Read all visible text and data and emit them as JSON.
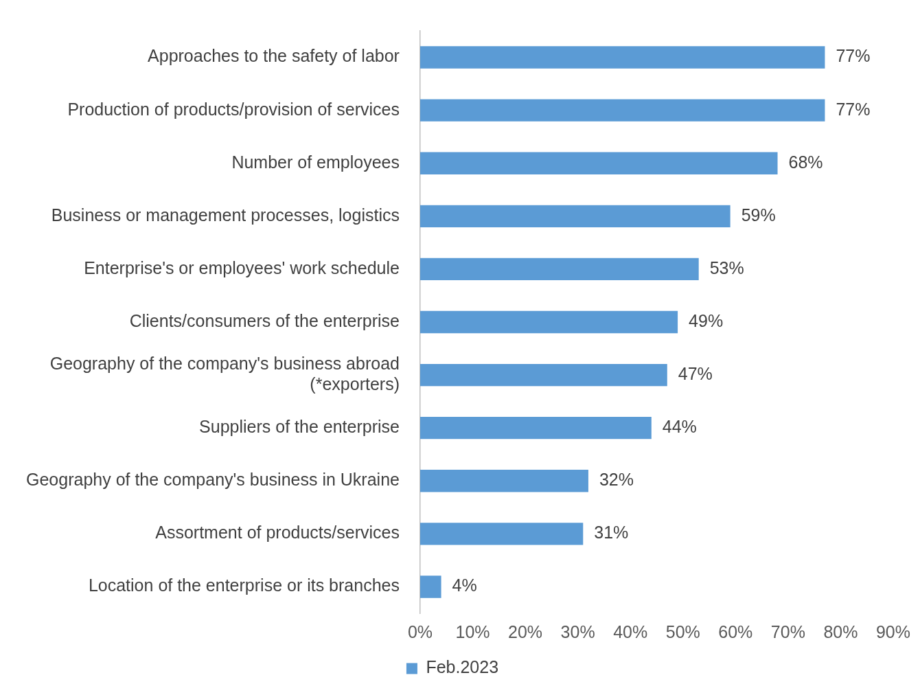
{
  "chart_data": {
    "type": "bar",
    "orientation": "horizontal",
    "categories": [
      "Approaches to the safety of labor",
      "Production of products/provision of services",
      "Number of employees",
      "Business or management processes, logistics",
      "Enterprise's or employees' work schedule",
      "Clients/consumers of the enterprise",
      "Geography of the company's business abroad (*exporters)",
      "Suppliers of the enterprise",
      "Geography of the company's business in Ukraine",
      "Assortment of products/services",
      "Location of the enterprise or its branches"
    ],
    "series": [
      {
        "name": "Feb.2023",
        "color": "#5b9bd5",
        "values": [
          77,
          77,
          68,
          59,
          53,
          49,
          47,
          44,
          32,
          31,
          4
        ],
        "value_labels": [
          "77%",
          "77%",
          "68%",
          "59%",
          "53%",
          "49%",
          "47%",
          "44%",
          "32%",
          "31%",
          "4%"
        ]
      }
    ],
    "xlim": [
      0,
      90
    ],
    "xticks": [
      {
        "value": 0,
        "label": "0%"
      },
      {
        "value": 10,
        "label": "10%"
      },
      {
        "value": 20,
        "label": "20%"
      },
      {
        "value": 30,
        "label": "30%"
      },
      {
        "value": 40,
        "label": "40%"
      },
      {
        "value": 50,
        "label": "50%"
      },
      {
        "value": 60,
        "label": "60%"
      },
      {
        "value": 70,
        "label": "70%"
      },
      {
        "value": 80,
        "label": "80%"
      },
      {
        "value": 90,
        "label": "90%"
      }
    ],
    "legend": "bottom"
  }
}
